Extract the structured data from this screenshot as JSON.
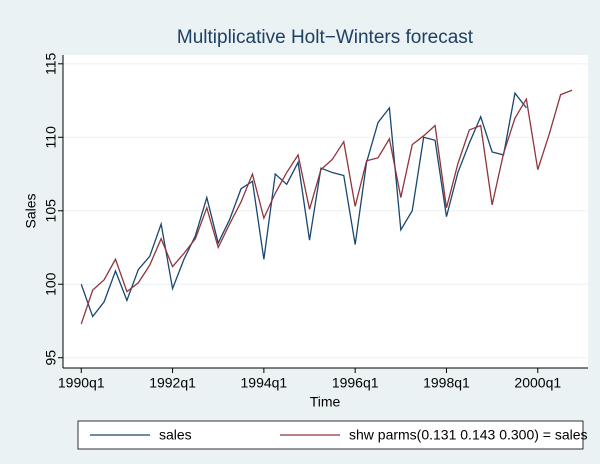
{
  "chart_data": {
    "type": "line",
    "title": "Multiplicative Holt−Winters forecast",
    "x_label": "Time",
    "y_label": "Sales",
    "x": [
      120,
      121,
      122,
      123,
      124,
      125,
      126,
      127,
      128,
      129,
      130,
      131,
      132,
      133,
      134,
      135,
      136,
      137,
      138,
      139,
      140,
      141,
      142,
      143,
      144,
      145,
      146,
      147,
      148,
      149,
      150,
      151,
      152,
      153,
      154,
      155,
      156,
      157,
      158,
      159,
      160,
      161,
      162,
      163
    ],
    "series": [
      {
        "name": "sales",
        "color": "#1a476f",
        "values": [
          100.0,
          97.8,
          98.8,
          100.9,
          98.9,
          101.0,
          101.9,
          104.1,
          99.7,
          101.7,
          103.3,
          105.9,
          102.8,
          104.4,
          106.5,
          107.0,
          101.7,
          107.5,
          106.8,
          108.3,
          103.0,
          107.9,
          107.6,
          107.4,
          102.7,
          108.3,
          111.0,
          112.0,
          103.7,
          105.0,
          110.0,
          109.8,
          104.6,
          107.6,
          109.6,
          111.4,
          109.0,
          108.8,
          113.0,
          112.0,
          null,
          null,
          null,
          null
        ]
      },
      {
        "name": "shw parms(0.131 0.143 0.300) = sales",
        "color": "#90353b",
        "values": [
          97.3,
          99.6,
          100.3,
          101.7,
          99.5,
          100.1,
          101.3,
          103.1,
          101.2,
          102.1,
          103.1,
          105.2,
          102.5,
          104.1,
          105.6,
          107.5,
          104.5,
          106.2,
          107.6,
          108.8,
          105.1,
          107.8,
          108.5,
          109.7,
          105.3,
          108.4,
          108.6,
          109.9,
          105.9,
          109.5,
          110.1,
          110.8,
          105.2,
          108.2,
          110.5,
          110.8,
          105.4,
          108.9,
          111.3,
          112.6,
          107.8,
          110.2,
          112.9,
          113.2
        ]
      }
    ],
    "xlim": [
      118.4,
      164.4
    ],
    "xticks": [
      {
        "value": 120,
        "label": "1990q1"
      },
      {
        "value": 128,
        "label": "1992q1"
      },
      {
        "value": 136,
        "label": "1994q1"
      },
      {
        "value": 144,
        "label": "1996q1"
      },
      {
        "value": 152,
        "label": "1998q1"
      },
      {
        "value": 160,
        "label": "2000q1"
      }
    ],
    "ylim": [
      94.3,
      115.6
    ],
    "yticks": [
      95,
      100,
      105,
      110,
      115
    ],
    "grid": true,
    "legend": "bottom"
  }
}
